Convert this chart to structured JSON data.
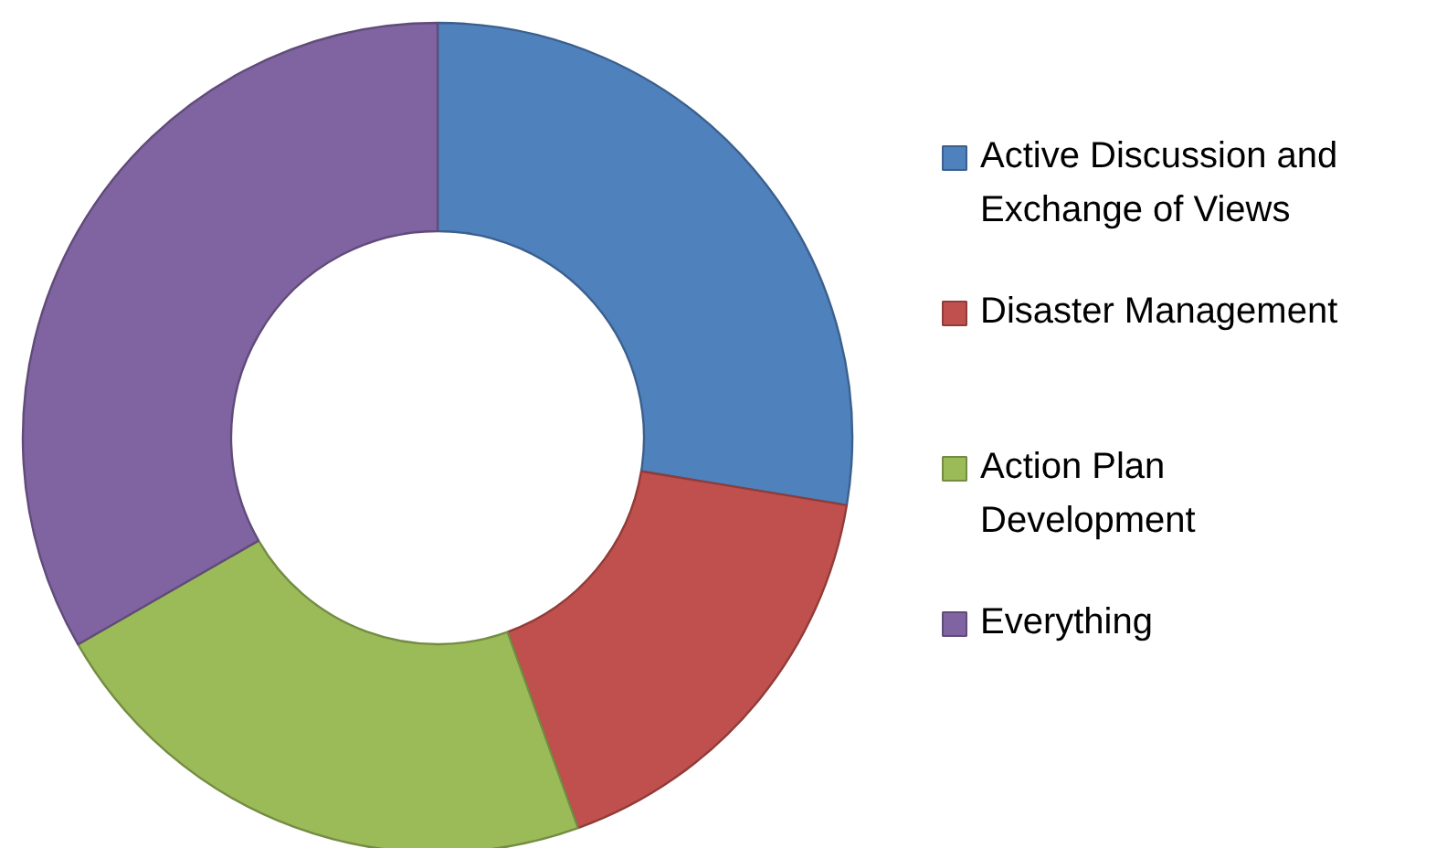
{
  "chart_data": {
    "type": "donut",
    "categories": [
      "Active Discussion and Exchange of Views",
      "Disaster Management",
      "Action Plan Development",
      "Everything"
    ],
    "values": [
      27.6,
      16.9,
      22.2,
      33.3
    ],
    "colors": [
      "#4f81bd",
      "#c0504d",
      "#9bbb59",
      "#8064a2"
    ],
    "legend": "right"
  }
}
